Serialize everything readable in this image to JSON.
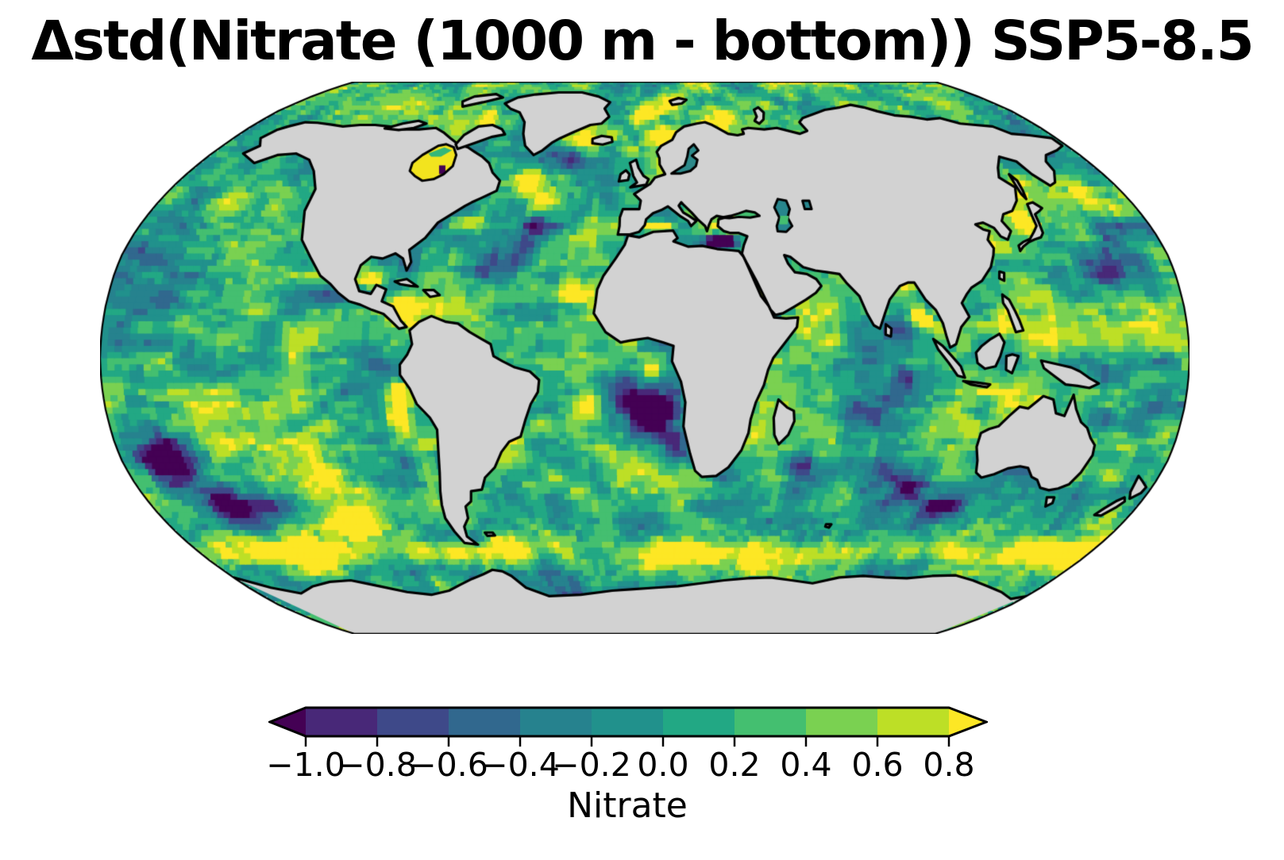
{
  "title": "Δstd(Nitrate (1000 m - bottom)) SSP5-8.5",
  "colorbar": {
    "label": "Nitrate",
    "tick_labels": [
      "−1.0",
      "−0.8",
      "−0.6",
      "−0.4",
      "−0.2",
      "0.0",
      "0.2",
      "0.4",
      "0.6",
      "0.8"
    ],
    "boundaries": [
      -1.0,
      -0.8,
      -0.6,
      -0.4,
      -0.2,
      0.0,
      0.2,
      0.4,
      0.6,
      0.8
    ],
    "segment_colors": [
      "#482878",
      "#3e4989",
      "#31688e",
      "#26828e",
      "#21918c",
      "#22a884",
      "#44bf70",
      "#7ad151",
      "#bddf26"
    ],
    "under_color": "#440154",
    "over_color": "#fde725",
    "extend": "both",
    "colormap": "viridis"
  },
  "map": {
    "projection": "Robinson",
    "land_color": "#d2d2d2",
    "coastline_color": "#000000",
    "ocean_colormap": "viridis"
  },
  "chart_data": {
    "type": "heatmap",
    "title": "Δstd(Nitrate (1000 m - bottom)) SSP5-8.5",
    "statistic": "Δstd",
    "variable": "Nitrate",
    "depth_range": "1000 m - bottom",
    "scenario": "SSP5-8.5",
    "colorbar_label": "Nitrate",
    "value_range": [
      -1.0,
      0.8
    ],
    "tick_step": 0.2,
    "colormap": "viridis",
    "projection": "Robinson",
    "land": "gray (no data over land; lakes/inland seas colored)",
    "notable_regions": [
      {
        "region": "South-central Pacific (~165°W–140°W, 25°S–50°S)",
        "value": "strongly negative, ≤ −1.0"
      },
      {
        "region": "Southeast Atlantic / Angola–Benguela basin (~10°W–15°E, 5°S–28°S)",
        "value": "strongly negative, ≤ −1.0"
      },
      {
        "region": "Eastern Mediterranean",
        "value": "strongly negative, ≤ −1.0"
      },
      {
        "region": "Western Mediterranean",
        "value": "strongly positive, ≥ +0.8"
      },
      {
        "region": "Subtropical North Atlantic gyre (~20°N–35°N)",
        "value": "negative, ≈ −0.4 to −0.8"
      },
      {
        "region": "South Indian Ocean (~75°E–115°E, 30°S–45°S)",
        "value": "negative, ≈ −0.6 to −1.0"
      },
      {
        "region": "Northwest Pacific (~150°E–180°, 20°N–35°N)",
        "value": "negative, ≈ −0.4 to −0.6"
      },
      {
        "region": "Coral Sea / east of New Guinea",
        "value": "negative, ≈ −0.6 to −1.0"
      },
      {
        "region": "Southern Ocean band (~50°S–62°S)",
        "value": "positive, ≈ +0.4 to ≥ +0.8"
      },
      {
        "region": "Hudson Bay",
        "value": "strongly positive, ≥ +0.8"
      },
      {
        "region": "Labrador Sea / south of Greenland",
        "value": "strongly positive, ≥ +0.8"
      },
      {
        "region": "Norwegian–Greenland Sea and Barents Sea",
        "value": "strongly positive, ≥ +0.8"
      },
      {
        "region": "Gulf Stream off New England (~65°W, 38°N)",
        "value": "positive, ≈ +0.6 to +0.8"
      },
      {
        "region": "Caribbean Sea and Gulf of Mexico",
        "value": "positive, ≈ +0.6 to ≥ +0.8"
      },
      {
        "region": "Peru–Chile coastal upwelling",
        "value": "positive, ≈ +0.6 to ≥ +0.8"
      },
      {
        "region": "Sea of Japan",
        "value": "strongly positive, ≥ +0.8"
      },
      {
        "region": "Bay of Bengal (~90°E, 12°N)",
        "value": "strongly positive, ≥ +0.8"
      },
      {
        "region": "Gulf of Guinea",
        "value": "positive, ≈ +0.6"
      },
      {
        "region": "Black Sea",
        "value": "positive (yellow west, green east)"
      },
      {
        "region": "Open-ocean background",
        "value": "≈ −0.2 to +0.4 (teal/green)"
      }
    ]
  }
}
